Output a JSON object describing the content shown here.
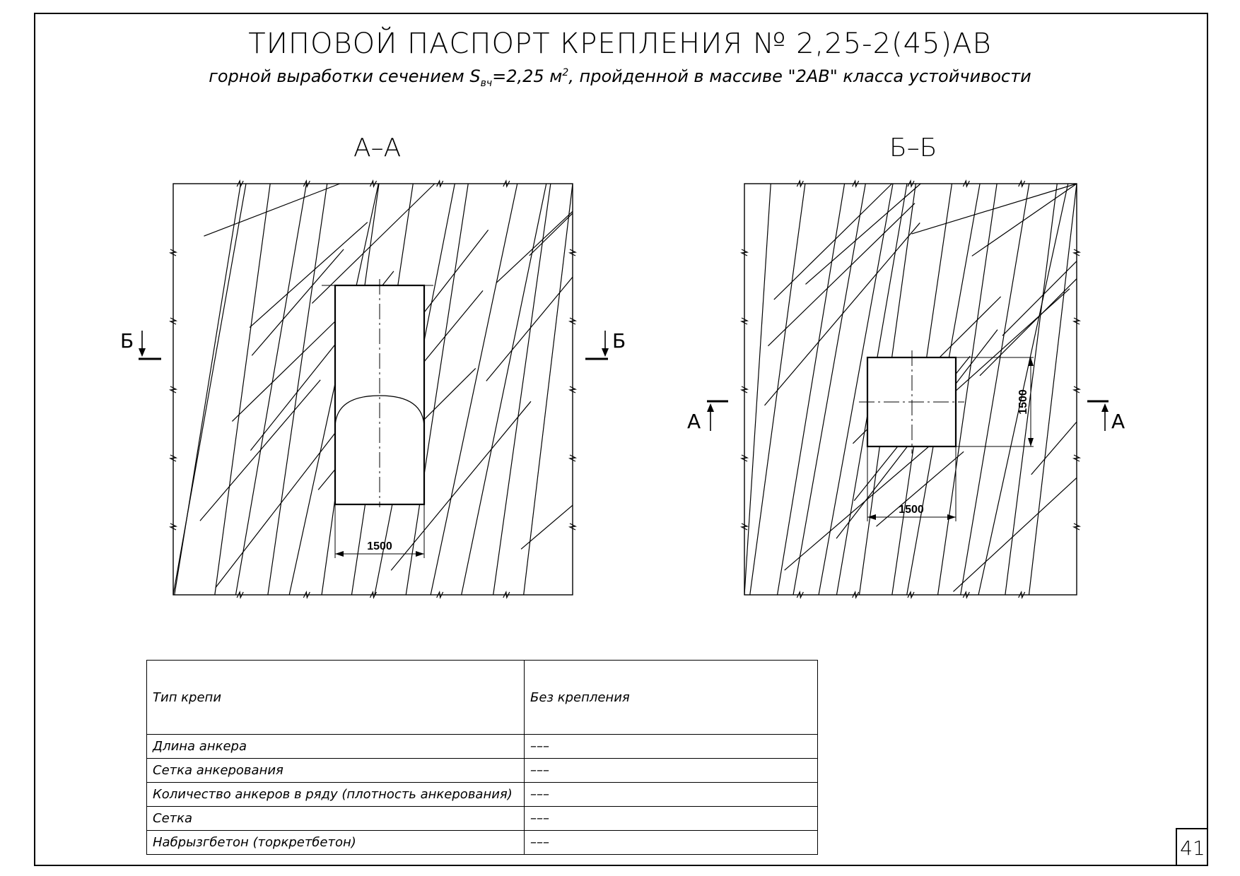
{
  "title": "ТИПОВОЙ ПАСПОРТ КРЕПЛЕНИЯ № 2,25-2(45)АВ",
  "subtitle": {
    "prefix": "горной выработки сечением S",
    "sub": "вч",
    "mid": "=2,25 м",
    "sup": "2",
    "suffix": ", пройденной в массиве \"2АВ\" класса устойчивости"
  },
  "section_aa": {
    "title": "А–А",
    "cut_left": "Б",
    "cut_right": "Б",
    "dim_width": "1500"
  },
  "section_bb": {
    "title": "Б–Б",
    "cut_left": "А",
    "cut_right": "А",
    "dim_width": "1500",
    "dim_height": "1500"
  },
  "table": {
    "rows": [
      {
        "label": "Тип крепи",
        "value": "Без крепления"
      },
      {
        "label": "Длина анкера",
        "value": "–––"
      },
      {
        "label": "Сетка анкерования",
        "value": "–––"
      },
      {
        "label": "Количество анкеров в ряду (плотность анкерования)",
        "value": "–––"
      },
      {
        "label": "Сетка",
        "value": "–––"
      },
      {
        "label": "Набрызгбетон (торкретбетон)",
        "value": "–––"
      }
    ]
  },
  "page_number": "41"
}
